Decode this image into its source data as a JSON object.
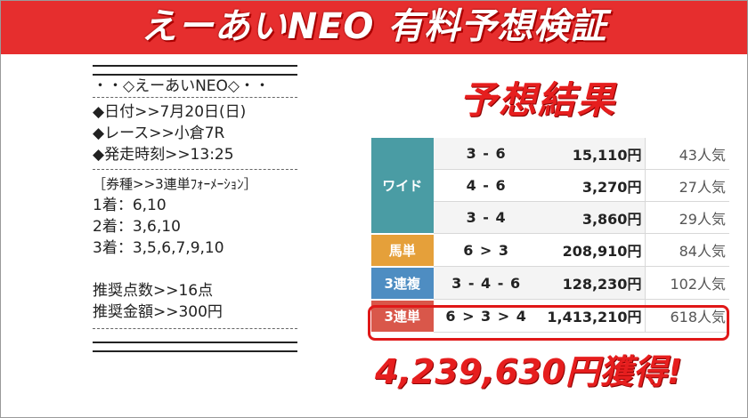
{
  "banner": {
    "title": "えーあいNEO 有料予想検証"
  },
  "ticket": {
    "header": "・・◇えーあいNEO◇・・",
    "date": "◆日付>>7月20日(日)",
    "race": "◆レース>>小倉7R",
    "start_time": "◆発走時刻>>13:25",
    "bet_type": "［券種>>3連単ﾌｫｰﾒｰｼｮﾝ］",
    "first": "1着：6,10",
    "second": "2着：3,6,10",
    "third": "3着：3,5,6,7,9,10",
    "points": "推奨点数>>16点",
    "amount": "推奨金額>>300円"
  },
  "results_title": "予想結果",
  "results": {
    "wide": {
      "label": "ワイド",
      "rows": [
        {
          "combo": "3 - 6",
          "payout": "15,110円",
          "popularity": "43人気"
        },
        {
          "combo": "4 - 6",
          "payout": "3,270円",
          "popularity": "27人気"
        },
        {
          "combo": "3 - 4",
          "payout": "3,860円",
          "popularity": "29人気"
        }
      ]
    },
    "umatan": {
      "label": "馬単",
      "combo": "6 > 3",
      "payout": "208,910円",
      "popularity": "84人気"
    },
    "sanrenpuku": {
      "label": "3連複",
      "combo": "3 - 4 - 6",
      "payout": "128,230円",
      "popularity": "102人気"
    },
    "sanrentan": {
      "label": "3連単",
      "combo": "6 > 3 > 4",
      "payout": "1,413,210円",
      "popularity": "618人気"
    }
  },
  "total_won": "4,239,630円獲得!",
  "colors": {
    "banner": "#e62e2e",
    "accent_red": "#e61e1e",
    "wide": "#4a9ca4",
    "umatan": "#e5a03a",
    "sanrenpuku": "#4e8dc2",
    "sanrentan": "#d9574a"
  }
}
